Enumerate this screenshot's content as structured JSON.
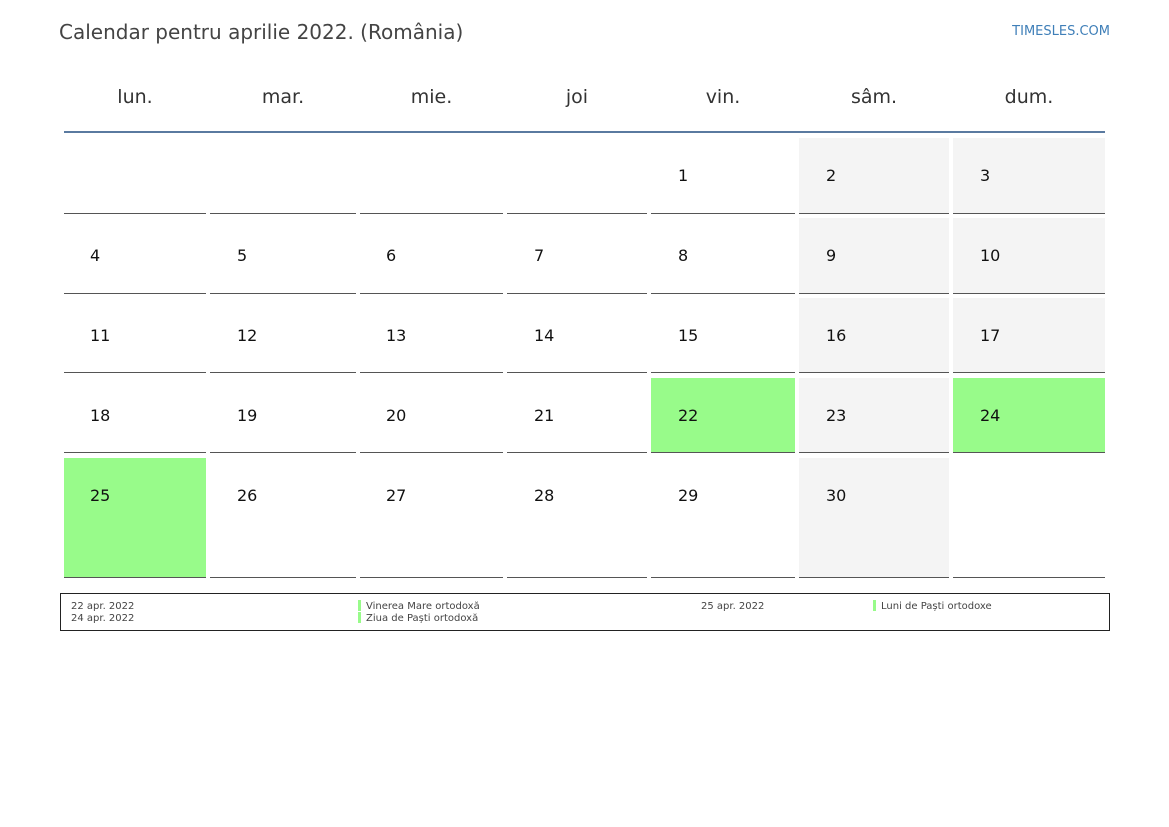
{
  "header": {
    "title": "Calendar pentru aprilie 2022. (România)",
    "brand": "TIMESLES.COM"
  },
  "weekdays": [
    "lun.",
    "mar.",
    "mie.",
    "joi",
    "vin.",
    "sâm.",
    "dum."
  ],
  "weeks": [
    [
      "",
      "",
      "",
      "",
      "1",
      "2",
      "3"
    ],
    [
      "4",
      "5",
      "6",
      "7",
      "8",
      "9",
      "10"
    ],
    [
      "11",
      "12",
      "13",
      "14",
      "15",
      "16",
      "17"
    ],
    [
      "18",
      "19",
      "20",
      "21",
      "22",
      "23",
      "24"
    ],
    [
      "25",
      "26",
      "27",
      "28",
      "29",
      "30",
      ""
    ]
  ],
  "holiday_days": [
    "22",
    "24",
    "25"
  ],
  "colors": {
    "holiday": "#98fb8a",
    "weekend": "#f4f4f4",
    "header_rule": "#5a7aa0",
    "brand": "#3f7fb8"
  },
  "legend": {
    "col1": [
      {
        "date": "22 apr. 2022",
        "name": "Vinerea Mare ortodoxă"
      },
      {
        "date": "24 apr. 2022",
        "name": "Ziua de Paști ortodoxă"
      }
    ],
    "col2": [
      {
        "date": "25 apr. 2022",
        "name": "Luni de Paști ortodoxe"
      }
    ]
  }
}
